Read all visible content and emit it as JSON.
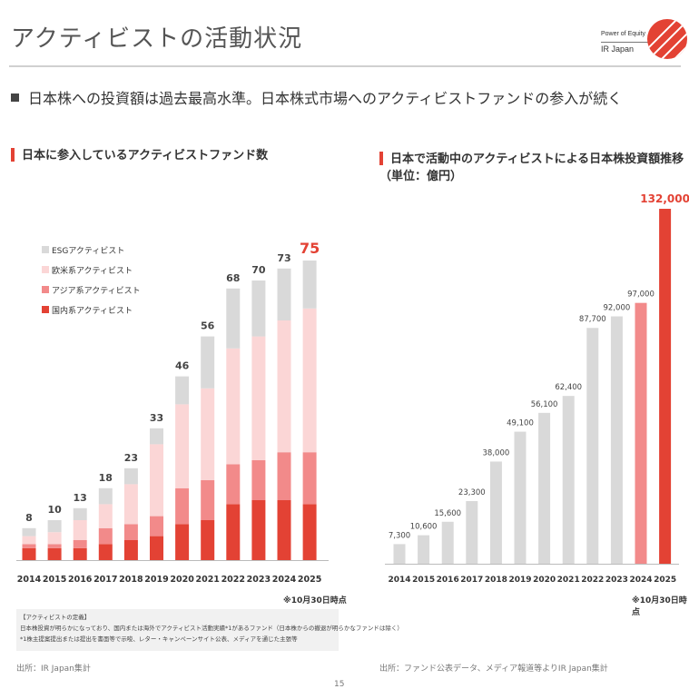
{
  "page": {
    "title": "アクティビストの活動状況",
    "subtitle": "日本株への投資額は過去最高水準。日本株式市場へのアクティビストファンドの参入が続く",
    "page_number": "15"
  },
  "logo": {
    "line1": "Power of Equity",
    "line2": "IR Japan",
    "color": "#e34234"
  },
  "left_panel": {
    "title": "日本に参入しているアクティビストファンド数",
    "as_of": "※10月30日時点",
    "note_lines": [
      "【アクティビストの定義】",
      "日本株投資が明らかになっており、国内または海外でアクティビスト活動実績*1があるファンド（日本株からの撤退が明らかなファンドは除く）",
      "*1株主提案提出または提出を書面等で示唆、レター・キャンペーンサイト公表、メディアを通じた主張等"
    ],
    "source": "出所：IR Japan集計"
  },
  "right_panel": {
    "title": "日本で活動中のアクティビストによる日本株投資額推移（単位：億円）",
    "as_of": "※10月30日時点",
    "source": "出所：ファンド公表データ、メディア報道等よりIR Japan集計"
  },
  "chart_data": [
    {
      "type": "bar",
      "stacked": true,
      "title": "日本に参入しているアクティビストファンド数",
      "categories": [
        "2014",
        "2015",
        "2016",
        "2017",
        "2018",
        "2019",
        "2020",
        "2021",
        "2022",
        "2023",
        "2024",
        "2025"
      ],
      "totals": [
        "8",
        "10",
        "13",
        "18",
        "23",
        "33",
        "46",
        "56",
        "68",
        "70",
        "73",
        "75"
      ],
      "ylim": [
        0,
        80
      ],
      "legend_placement": "top-left",
      "series": [
        {
          "name": "国内系アクティビスト",
          "color": "#e34234",
          "values": [
            3,
            3,
            3,
            4,
            5,
            6,
            9,
            10,
            14,
            15,
            15,
            14
          ]
        },
        {
          "name": "アジア系アクティビスト",
          "color": "#f28a8a",
          "values": [
            1,
            1,
            2,
            4,
            4,
            5,
            9,
            10,
            10,
            10,
            12,
            13
          ]
        },
        {
          "name": "欧米系アクティビスト",
          "color": "#fbd6d6",
          "values": [
            2,
            3,
            5,
            6,
            10,
            18,
            21,
            23,
            29,
            31,
            33,
            36
          ]
        },
        {
          "name": "ESGアクティビスト",
          "color": "#d9d9d9",
          "values": [
            2,
            3,
            3,
            4,
            4,
            4,
            7,
            13,
            15,
            14,
            13,
            12
          ]
        }
      ]
    },
    {
      "type": "bar",
      "title": "日本で活動中のアクティビストによる日本株投資額推移（単位：億円）",
      "categories": [
        "2014",
        "2015",
        "2016",
        "2017",
        "2018",
        "2019",
        "2020",
        "2021",
        "2022",
        "2023",
        "2024",
        "2025"
      ],
      "values": [
        7300,
        10600,
        15600,
        23300,
        38000,
        49100,
        56100,
        62400,
        87700,
        92000,
        97000,
        132000
      ],
      "labels": [
        "7,300",
        "10,600",
        "15,600",
        "23,300",
        "38,000",
        "49,100",
        "56,100",
        "62,400",
        "87,700",
        "92,000",
        "97,000",
        "132,000"
      ],
      "ylim": [
        0,
        135000
      ],
      "colors": {
        "default": "#d9d9d9",
        "2024": "#f28a8a",
        "2025": "#e34234"
      }
    }
  ]
}
